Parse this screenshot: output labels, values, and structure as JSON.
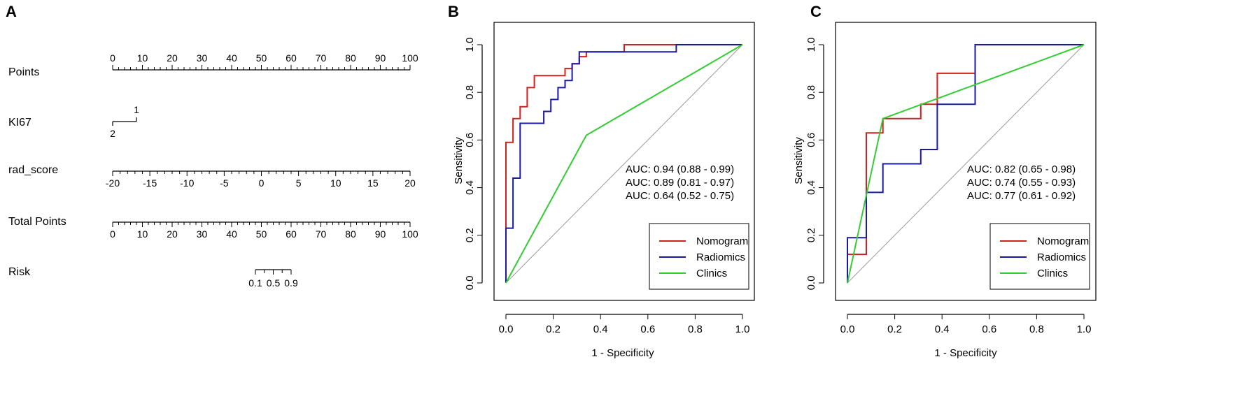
{
  "panels": {
    "a": {
      "letter": "A"
    },
    "b": {
      "letter": "B"
    },
    "c": {
      "letter": "C"
    }
  },
  "nomogram": {
    "points": {
      "label": "Points",
      "min": 0,
      "max": 100,
      "labels": [
        0,
        10,
        20,
        30,
        40,
        50,
        60,
        70,
        80,
        90,
        100
      ]
    },
    "ki67": {
      "label": "KI67",
      "level_high": "1",
      "level_low": "2",
      "points_range": [
        0,
        8
      ]
    },
    "rad_score": {
      "label": "rad_score",
      "min": -20,
      "max": 20,
      "labels": [
        -20,
        -15,
        -10,
        -5,
        0,
        5,
        10,
        15,
        20
      ]
    },
    "total_points": {
      "label": "Total Points",
      "min": 0,
      "max": 100,
      "labels": [
        0,
        10,
        20,
        30,
        40,
        50,
        60,
        70,
        80,
        90,
        100
      ]
    },
    "risk": {
      "label": "Risk",
      "labels": [
        "0.1",
        "0.5",
        "0.9"
      ],
      "points_range": [
        48,
        60
      ]
    }
  },
  "chart_data": [
    {
      "type": "line",
      "panel": "B",
      "xlabel": "1 - Specificity",
      "ylabel": "Sensitivity",
      "xlim": [
        0,
        1
      ],
      "ylim": [
        0,
        1
      ],
      "x_ticks": [
        "0.0",
        "0.2",
        "0.4",
        "0.6",
        "0.8",
        "1.0"
      ],
      "y_ticks": [
        "0.0",
        "0.2",
        "0.4",
        "0.6",
        "0.8",
        "1.0"
      ],
      "series": [
        {
          "name": "Nomogram",
          "color": "#cc2222",
          "auc": "AUC: 0.94 (0.88 - 0.99)",
          "points": [
            [
              0,
              0
            ],
            [
              0,
              0.23
            ],
            [
              0,
              0.59
            ],
            [
              0.03,
              0.59
            ],
            [
              0.03,
              0.69
            ],
            [
              0.06,
              0.69
            ],
            [
              0.06,
              0.74
            ],
            [
              0.09,
              0.74
            ],
            [
              0.09,
              0.82
            ],
            [
              0.12,
              0.82
            ],
            [
              0.12,
              0.87
            ],
            [
              0.25,
              0.87
            ],
            [
              0.25,
              0.9
            ],
            [
              0.28,
              0.9
            ],
            [
              0.28,
              0.92
            ],
            [
              0.31,
              0.92
            ],
            [
              0.31,
              0.95
            ],
            [
              0.34,
              0.95
            ],
            [
              0.34,
              0.97
            ],
            [
              0.5,
              0.97
            ],
            [
              0.5,
              1
            ],
            [
              1,
              1
            ]
          ]
        },
        {
          "name": "Radiomics",
          "color": "#1a1aa0",
          "auc": "AUC: 0.89 (0.81 - 0.97)",
          "points": [
            [
              0,
              0
            ],
            [
              0,
              0.23
            ],
            [
              0.03,
              0.23
            ],
            [
              0.03,
              0.44
            ],
            [
              0.06,
              0.44
            ],
            [
              0.06,
              0.67
            ],
            [
              0.16,
              0.67
            ],
            [
              0.16,
              0.72
            ],
            [
              0.19,
              0.72
            ],
            [
              0.19,
              0.77
            ],
            [
              0.22,
              0.77
            ],
            [
              0.22,
              0.82
            ],
            [
              0.25,
              0.82
            ],
            [
              0.25,
              0.85
            ],
            [
              0.28,
              0.85
            ],
            [
              0.28,
              0.92
            ],
            [
              0.31,
              0.92
            ],
            [
              0.31,
              0.97
            ],
            [
              0.72,
              0.97
            ],
            [
              0.72,
              1
            ],
            [
              1,
              1
            ]
          ]
        },
        {
          "name": "Clinics",
          "color": "#33cc33",
          "auc": "AUC: 0.64 (0.52 - 0.75)",
          "points": [
            [
              0,
              0
            ],
            [
              0.34,
              0.62
            ],
            [
              1,
              1
            ]
          ]
        }
      ],
      "legend": [
        "Nomogram",
        "Radiomics",
        "Clinics"
      ],
      "legend_position": "bottom-right"
    },
    {
      "type": "line",
      "panel": "C",
      "xlabel": "1 - Specificity",
      "ylabel": "Sensitivity",
      "xlim": [
        0,
        1
      ],
      "ylim": [
        0,
        1
      ],
      "x_ticks": [
        "0.0",
        "0.2",
        "0.4",
        "0.6",
        "0.8",
        "1.0"
      ],
      "y_ticks": [
        "0.0",
        "0.2",
        "0.4",
        "0.6",
        "0.8",
        "1.0"
      ],
      "series": [
        {
          "name": "Nomogram",
          "color": "#cc2222",
          "auc": "AUC: 0.82 (0.65 - 0.98)",
          "points": [
            [
              0,
              0
            ],
            [
              0,
              0.12
            ],
            [
              0.08,
              0.12
            ],
            [
              0.08,
              0.63
            ],
            [
              0.15,
              0.63
            ],
            [
              0.15,
              0.69
            ],
            [
              0.31,
              0.69
            ],
            [
              0.31,
              0.75
            ],
            [
              0.38,
              0.75
            ],
            [
              0.38,
              0.88
            ],
            [
              0.54,
              0.88
            ],
            [
              0.54,
              1
            ],
            [
              1,
              1
            ]
          ]
        },
        {
          "name": "Radiomics",
          "color": "#1a1aa0",
          "auc": "AUC: 0.74 (0.55 - 0.93)",
          "points": [
            [
              0,
              0
            ],
            [
              0,
              0.19
            ],
            [
              0.08,
              0.19
            ],
            [
              0.08,
              0.38
            ],
            [
              0.15,
              0.38
            ],
            [
              0.15,
              0.5
            ],
            [
              0.31,
              0.5
            ],
            [
              0.31,
              0.56
            ],
            [
              0.38,
              0.56
            ],
            [
              0.38,
              0.75
            ],
            [
              0.54,
              0.75
            ],
            [
              0.54,
              1
            ],
            [
              1,
              1
            ]
          ]
        },
        {
          "name": "Clinics",
          "color": "#33cc33",
          "auc": "AUC: 0.77 (0.61 - 0.92)",
          "points": [
            [
              0,
              0
            ],
            [
              0.15,
              0.69
            ],
            [
              1,
              1
            ]
          ]
        }
      ],
      "legend": [
        "Nomogram",
        "Radiomics",
        "Clinics"
      ],
      "legend_position": "bottom-right"
    }
  ]
}
